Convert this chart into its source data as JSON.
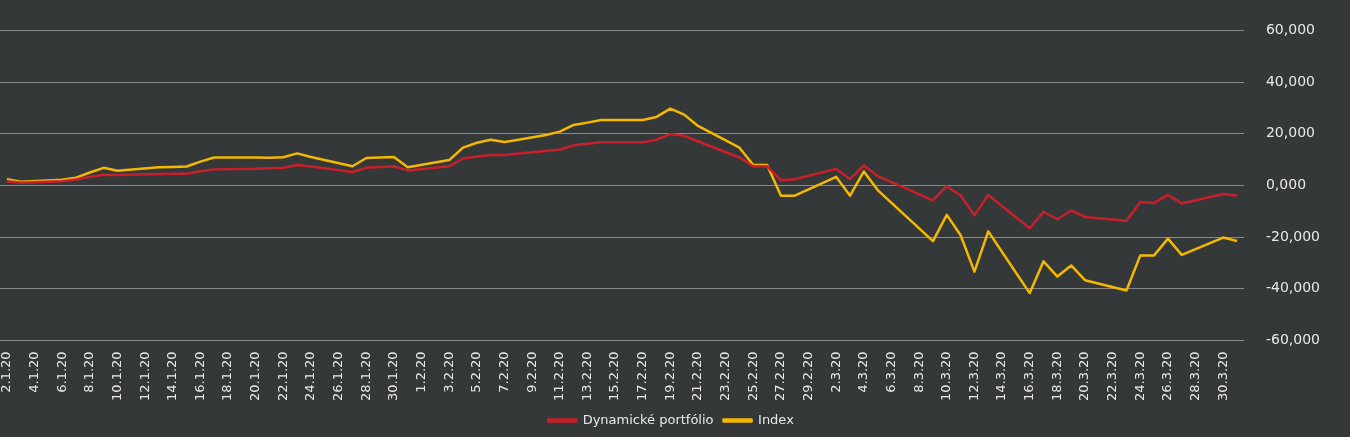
{
  "chart_data": {
    "type": "line",
    "categories": [
      "2.1.20",
      null,
      "4.1.20",
      null,
      "6.1.20",
      null,
      "8.1.20",
      null,
      "10.1.20",
      null,
      "12.1.20",
      null,
      "14.1.20",
      null,
      "16.1.20",
      null,
      "18.1.20",
      null,
      "20.1.20",
      null,
      "22.1.20",
      null,
      "24.1.20",
      null,
      "26.1.20",
      null,
      "28.1.20",
      null,
      "30.1.20",
      null,
      "1.2.20",
      null,
      "3.2.20",
      null,
      "5.2.20",
      null,
      "7.2.20",
      null,
      "9.2.20",
      null,
      "11.2.20",
      null,
      "13.2.20",
      null,
      "15.2.20",
      null,
      "17.2.20",
      null,
      "19.2.20",
      null,
      "21.2.20",
      null,
      "23.2.20",
      null,
      "25.2.20",
      null,
      "27.2.20",
      null,
      "29.2.20",
      null,
      "2.3.20",
      null,
      "4.3.20",
      null,
      "6.3.20",
      null,
      "8.3.20",
      null,
      "10.3.20",
      null,
      "12.3.20",
      null,
      "14.3.20",
      null,
      "16.3.20",
      null,
      "18.3.20",
      null,
      "20.3.20",
      null,
      "22.3.20",
      null,
      "24.3.20",
      null,
      "26.3.20",
      null,
      "28.3.20",
      null,
      "30.3.20",
      null
    ],
    "series": [
      {
        "name": "Dynamické portfólio",
        "color": "#c8202a",
        "values": [
          1600,
          1000,
          null,
          null,
          1600,
          2300,
          3300,
          4100,
          4000,
          null,
          null,
          4400,
          4500,
          4500,
          5500,
          6200,
          null,
          null,
          6400,
          6600,
          6800,
          7900,
          7300,
          null,
          null,
          5200,
          6800,
          7100,
          7400,
          5800,
          null,
          null,
          7400,
          10400,
          11200,
          11800,
          11800,
          null,
          null,
          13300,
          13900,
          15500,
          16100,
          16700,
          null,
          null,
          16700,
          17700,
          19900,
          19200,
          17100,
          null,
          null,
          10800,
          7400,
          7400,
          2000,
          2400,
          null,
          null,
          6400,
          2400,
          7700,
          3600,
          1300,
          null,
          null,
          -5800,
          -300,
          -3900,
          -11600,
          -3700,
          null,
          null,
          -16600,
          -10200,
          -13100,
          -9700,
          -12200,
          null,
          null,
          -13700,
          -6400,
          -6800,
          -3700,
          -7000,
          null,
          null,
          -3300,
          -3900
        ]
      },
      {
        "name": "Index",
        "color": "#f5b800",
        "values": [
          2400,
          1400,
          null,
          null,
          2200,
          3000,
          5000,
          6800,
          5700,
          null,
          null,
          7000,
          7100,
          7300,
          9200,
          10800,
          null,
          null,
          10800,
          10700,
          10900,
          12400,
          11000,
          null,
          null,
          7400,
          10600,
          10800,
          11000,
          7000,
          null,
          null,
          9800,
          14600,
          16500,
          17700,
          16800,
          null,
          null,
          19500,
          20800,
          23400,
          24300,
          25300,
          null,
          null,
          25300,
          26500,
          29700,
          27400,
          23000,
          null,
          null,
          14600,
          7900,
          7900,
          -4000,
          -4000,
          null,
          null,
          3300,
          -4000,
          5400,
          -1800,
          -6800,
          null,
          null,
          -21600,
          -11400,
          -19300,
          -33400,
          -17800,
          null,
          null,
          -41700,
          -29400,
          -35300,
          -31000,
          -36700,
          null,
          null,
          -40700,
          -27100,
          -27100,
          -20600,
          -26900,
          null,
          null,
          -20200,
          -21500
        ]
      }
    ],
    "ylim": [
      -60000,
      60000
    ],
    "yticks": [
      {
        "value": -60000,
        "label": "-60,000"
      },
      {
        "value": -40000,
        "label": "-40,000"
      },
      {
        "value": -20000,
        "label": "-20,000"
      },
      {
        "value": 0,
        "label": "0,000"
      },
      {
        "value": 20000,
        "label": "20,000"
      },
      {
        "value": 40000,
        "label": "40,000"
      },
      {
        "value": 60000,
        "label": "60,000"
      }
    ],
    "grid": "y",
    "legend": "bottom",
    "marker": "none",
    "line_style": "solid"
  }
}
